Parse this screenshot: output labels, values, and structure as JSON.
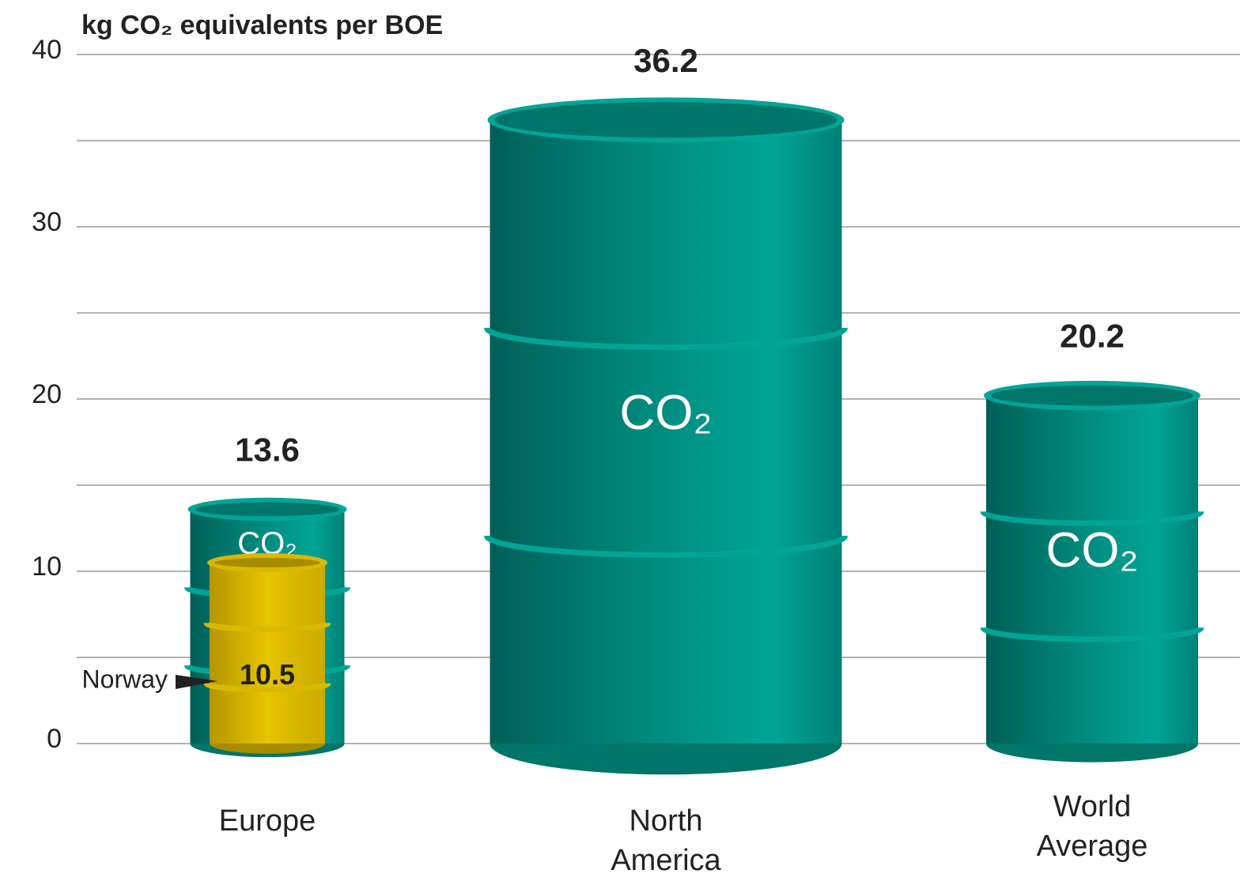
{
  "chart_data": {
    "type": "barrel",
    "title": "kg CO₂ equivalents per BOE",
    "categories": [
      "Europe",
      "North America",
      "World Average"
    ],
    "values": [
      13.6,
      36.2,
      20.2
    ],
    "color": "#00998a",
    "mark_label": "CO₂",
    "inset": {
      "label": "Norway",
      "value": 10.5,
      "color": "#e6c400"
    },
    "ylim": [
      0,
      40
    ],
    "yticks": [
      0,
      10,
      20,
      30,
      40
    ],
    "minor_yticks": [
      5,
      15,
      25,
      35
    ],
    "grid": true
  }
}
